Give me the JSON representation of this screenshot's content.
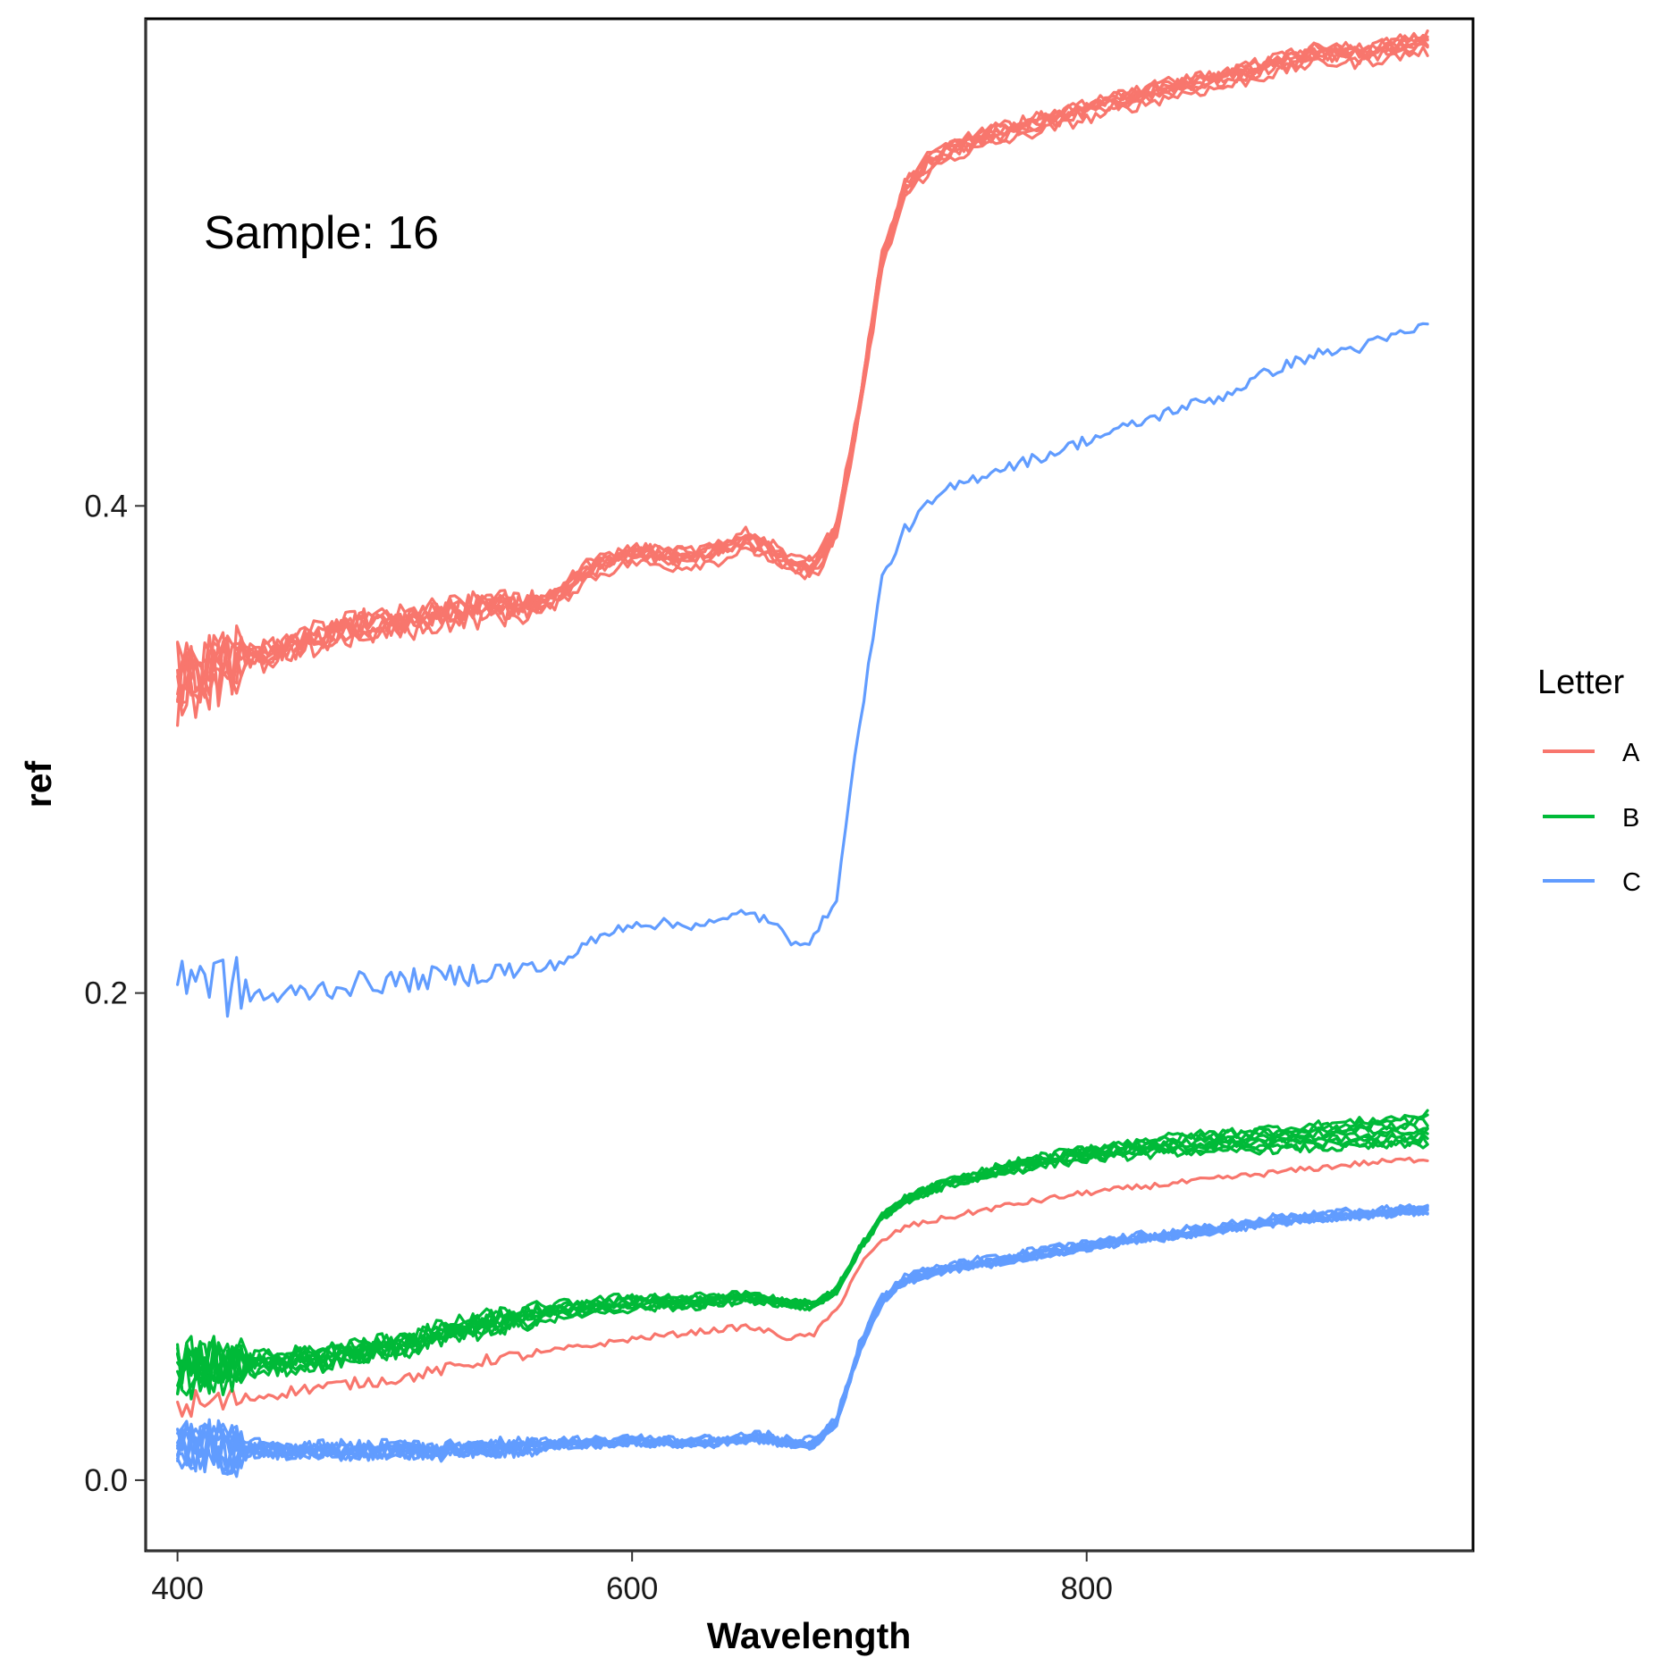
{
  "chart_data": {
    "type": "line",
    "xlabel": "Wavelength",
    "ylabel": "ref",
    "xlim": [
      386,
      970
    ],
    "ylim": [
      -0.029,
      0.6
    ],
    "xticks": [
      "400",
      "600",
      "800"
    ],
    "xtick_values": [
      400,
      600,
      800
    ],
    "yticks": [
      "0.0",
      "0.2",
      "0.4"
    ],
    "ytick_values": [
      0.0,
      0.2,
      0.4
    ],
    "annotation": "Sample: 16",
    "grid": false,
    "legend": {
      "title": "Letter",
      "position": "right",
      "entries": [
        {
          "label": "A",
          "color": "#F8766D"
        },
        {
          "label": "B",
          "color": "#00BA38"
        },
        {
          "label": "C",
          "color": "#619CFF"
        }
      ]
    },
    "x": [
      400,
      420,
      440,
      460,
      480,
      500,
      520,
      540,
      560,
      570,
      580,
      600,
      620,
      640,
      650,
      660,
      670,
      680,
      690,
      700,
      710,
      720,
      730,
      740,
      760,
      780,
      800,
      820,
      840,
      860,
      880,
      900,
      920,
      950
    ],
    "series": [
      {
        "name": "A",
        "color": "#F8766D",
        "count": 8,
        "jitter": 0.004,
        "noise": 0.004,
        "spread": [
          0.0,
          0.0,
          0.0
        ],
        "values": [
          0.327,
          0.335,
          0.338,
          0.345,
          0.35,
          0.352,
          0.356,
          0.358,
          0.359,
          0.365,
          0.373,
          0.38,
          0.378,
          0.381,
          0.386,
          0.382,
          0.375,
          0.374,
          0.39,
          0.44,
          0.5,
          0.53,
          0.54,
          0.546,
          0.552,
          0.557,
          0.562,
          0.567,
          0.572,
          0.575,
          0.58,
          0.585,
          0.585,
          0.59
        ]
      },
      {
        "name": "A",
        "color": "#F8766D",
        "count": 1,
        "jitter": 0.0,
        "noise": 0.002,
        "spread": [
          0.0,
          0.0,
          0.0
        ],
        "values": [
          0.03,
          0.032,
          0.035,
          0.038,
          0.04,
          0.042,
          0.046,
          0.05,
          0.052,
          0.054,
          0.055,
          0.058,
          0.06,
          0.062,
          0.063,
          0.061,
          0.058,
          0.06,
          0.07,
          0.088,
          0.098,
          0.104,
          0.106,
          0.108,
          0.112,
          0.115,
          0.118,
          0.12,
          0.122,
          0.124,
          0.126,
          0.128,
          0.13,
          0.132
        ]
      },
      {
        "name": "B",
        "color": "#00BA38",
        "count": 9,
        "jitter": 0.0,
        "noise": 0.003,
        "spread": [
          -0.006,
          -0.005,
          0.012
        ],
        "values": [
          0.046,
          0.047,
          0.048,
          0.05,
          0.053,
          0.056,
          0.061,
          0.065,
          0.068,
          0.07,
          0.071,
          0.073,
          0.073,
          0.074,
          0.075,
          0.074,
          0.072,
          0.072,
          0.078,
          0.095,
          0.108,
          0.115,
          0.119,
          0.122,
          0.127,
          0.131,
          0.134,
          0.136,
          0.138,
          0.139,
          0.14,
          0.141,
          0.142,
          0.144
        ]
      },
      {
        "name": "C",
        "color": "#619CFF",
        "count": 1,
        "jitter": 0.0,
        "noise": 0.004,
        "spread": [
          0.0,
          0.0,
          0.0
        ],
        "values": [
          0.212,
          0.204,
          0.198,
          0.201,
          0.204,
          0.205,
          0.207,
          0.209,
          0.21,
          0.213,
          0.22,
          0.229,
          0.228,
          0.229,
          0.234,
          0.229,
          0.222,
          0.222,
          0.24,
          0.31,
          0.37,
          0.39,
          0.4,
          0.407,
          0.415,
          0.42,
          0.427,
          0.433,
          0.44,
          0.445,
          0.455,
          0.462,
          0.465,
          0.474
        ]
      },
      {
        "name": "C",
        "color": "#619CFF",
        "count": 9,
        "jitter": 0.002,
        "noise": 0.003,
        "spread": [
          0.0,
          0.0,
          0.0
        ],
        "values": [
          0.016,
          0.014,
          0.013,
          0.013,
          0.013,
          0.013,
          0.013,
          0.014,
          0.015,
          0.016,
          0.016,
          0.017,
          0.016,
          0.017,
          0.018,
          0.018,
          0.016,
          0.016,
          0.025,
          0.055,
          0.075,
          0.083,
          0.086,
          0.088,
          0.091,
          0.094,
          0.097,
          0.1,
          0.102,
          0.104,
          0.107,
          0.109,
          0.11,
          0.112
        ]
      }
    ]
  }
}
